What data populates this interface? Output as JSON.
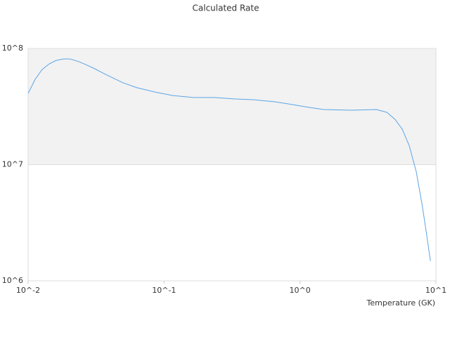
{
  "chart_data": {
    "type": "line",
    "title": "Calculated Rate",
    "x_label": "Temperature (GK)",
    "x_log": true,
    "y_log": true,
    "xlim": [
      0.01,
      10
    ],
    "ylim": [
      1000000,
      100000000
    ],
    "xticks": [
      {
        "value": 0.01,
        "label": "10^-2"
      },
      {
        "value": 0.1,
        "label": "10^-1"
      },
      {
        "value": 1,
        "label": "10^0"
      },
      {
        "value": 10,
        "label": "10^1"
      }
    ],
    "yticks": [
      {
        "value": 1000000,
        "label": "10^6"
      },
      {
        "value": 10000000,
        "label": "10^7"
      },
      {
        "value": 100000000,
        "label": "10^8"
      }
    ],
    "grid": true,
    "band_color": "#f2f2f2",
    "series": [
      {
        "color": "#5aa5e6",
        "x": [
          0.01,
          0.01126,
          0.01268,
          0.01429,
          0.0161,
          0.01815,
          0.0204,
          0.023,
          0.0259,
          0.031,
          0.0371,
          0.0499,
          0.0634,
          0.0853,
          0.115,
          0.164,
          0.235,
          0.335,
          0.452,
          0.647,
          0.821,
          1.17,
          1.49,
          2.4,
          3.64,
          4.35,
          5.01,
          5.65,
          6.37,
          7.17,
          7.89,
          8.48,
          9.11
        ],
        "values": [
          41000000,
          54200000,
          65900000,
          73600000,
          78900000,
          81100000,
          81100000,
          77800000,
          73600000,
          66800000,
          59800000,
          50600000,
          45900000,
          42200000,
          39400000,
          37800000,
          37800000,
          36700000,
          36200000,
          34800000,
          33300000,
          31100000,
          29800000,
          29400000,
          29800000,
          28200000,
          24500000,
          20200000,
          14500000,
          8650000,
          4620000,
          2650000,
          1480000
        ]
      }
    ]
  }
}
